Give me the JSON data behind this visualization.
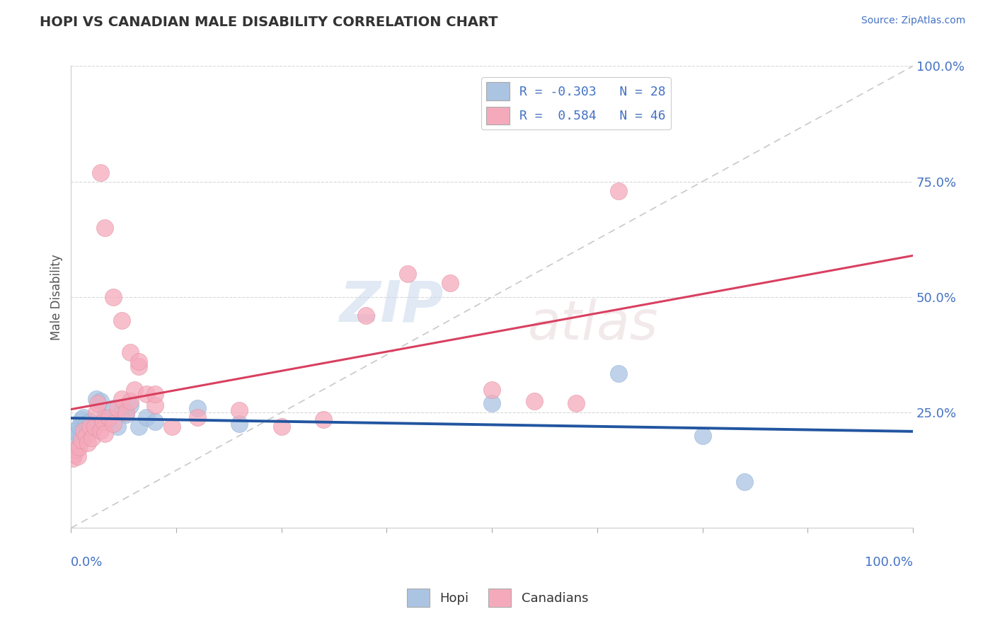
{
  "title": "HOPI VS CANADIAN MALE DISABILITY CORRELATION CHART",
  "source": "Source: ZipAtlas.com",
  "ylabel": "Male Disability",
  "legend_hopi_R": "-0.303",
  "legend_hopi_N": "28",
  "legend_canadians_R": "0.584",
  "legend_canadians_N": "46",
  "hopi_color": "#aac4e2",
  "hopi_edge_color": "#90b0d8",
  "hopi_line_color": "#2255a0",
  "canadians_color": "#f5aabc",
  "canadians_edge_color": "#e090a0",
  "canadians_line_color": "#d94060",
  "diagonal_color": "#c8c8c8",
  "legend_box_color": "#4472c4",
  "ytick_color": "#4472c4",
  "xtick_color": "#4472c4",
  "background_color": "#ffffff",
  "grid_color": "#d8d8d8",
  "hopi_points_x": [
    0.2,
    0.5,
    0.8,
    1.0,
    1.2,
    1.5,
    1.8,
    2.0,
    2.2,
    2.5,
    3.0,
    3.5,
    4.0,
    4.5,
    5.0,
    5.5,
    6.0,
    6.5,
    7.0,
    8.0,
    9.0,
    10.0,
    15.0,
    20.0,
    50.0,
    65.0,
    75.0,
    80.0
  ],
  "hopi_points_y": [
    20.0,
    21.0,
    20.5,
    22.0,
    23.5,
    24.0,
    22.5,
    21.5,
    23.0,
    22.0,
    28.0,
    27.5,
    24.0,
    23.5,
    26.0,
    22.0,
    25.0,
    24.5,
    26.5,
    22.0,
    24.0,
    23.0,
    26.0,
    22.5,
    27.0,
    33.5,
    20.0,
    10.0
  ],
  "canadians_points_x": [
    0.2,
    0.4,
    0.6,
    0.8,
    1.0,
    1.2,
    1.5,
    1.8,
    2.0,
    2.2,
    2.5,
    2.8,
    3.0,
    3.2,
    3.5,
    3.8,
    4.0,
    4.5,
    5.0,
    5.5,
    6.0,
    6.5,
    7.0,
    7.5,
    8.0,
    9.0,
    10.0,
    12.0,
    15.0,
    20.0,
    25.0,
    30.0,
    35.0,
    40.0,
    45.0,
    50.0,
    55.0,
    60.0,
    65.0,
    3.5,
    4.0,
    5.0,
    6.0,
    7.0,
    8.0,
    10.0
  ],
  "canadians_points_y": [
    15.0,
    16.0,
    17.0,
    15.5,
    17.5,
    19.0,
    21.0,
    20.0,
    18.5,
    22.0,
    19.5,
    22.0,
    25.0,
    27.0,
    21.0,
    23.0,
    20.5,
    24.0,
    22.5,
    26.0,
    28.0,
    25.0,
    27.5,
    30.0,
    35.0,
    29.0,
    26.5,
    22.0,
    24.0,
    25.5,
    22.0,
    23.5,
    46.0,
    55.0,
    53.0,
    30.0,
    27.5,
    27.0,
    73.0,
    77.0,
    65.0,
    50.0,
    45.0,
    38.0,
    36.0,
    29.0
  ],
  "xlim": [
    0,
    100
  ],
  "ylim": [
    0,
    100
  ],
  "xticks": [
    0,
    12.5,
    25,
    37.5,
    50,
    62.5,
    75,
    87.5,
    100
  ],
  "yticks": [
    25,
    50,
    75,
    100
  ]
}
